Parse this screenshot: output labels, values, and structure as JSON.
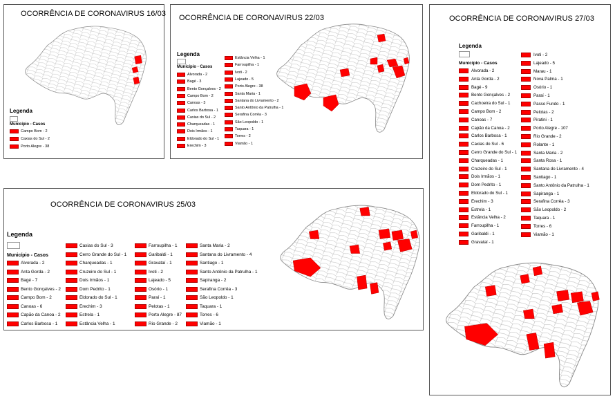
{
  "colors": {
    "affected": "#ff0000",
    "border": "#555555",
    "map_line": "#9a9a9a"
  },
  "panels": {
    "p1603": {
      "title": "OCORRÊNCIA DE CORONAVIRUS 16/03",
      "legend_title": "Legenda",
      "legend_header": "Município - Casos",
      "items": [
        "Campo Bom - 2",
        "Caxias do Sul - 2",
        "Porto Alegre - 38"
      ]
    },
    "p2203": {
      "title": "OCORRÊNCIA DE CORONAVIRUS 22/03",
      "legend_title": "Legenda",
      "legend_header": "Município - Casos",
      "col1": [
        "Alvorada - 2",
        "Bagé - 3",
        "Bento Gonçalves - 2",
        "Campo Bom - 2",
        "Canoas - 3",
        "Carlos Barbosa - 1",
        "Caxias do Sul - 2",
        "Charqueadas - 1",
        "Dois Irmãos - 1",
        "Eldorado do Sul - 1",
        "Erechim - 3"
      ],
      "col2": [
        "Estância Velha - 1",
        "Farroupilha - 1",
        "Ivoti - 2",
        "Lajeado - 5",
        "Porto Alegre - 38",
        "Santa Maria - 1",
        "Santana do Livramento - 2",
        "Santo Antônio da Patrulha - 1",
        "Serafina Corrêa - 3",
        "São Leopoldo - 1",
        "Taquara - 1",
        "Torres - 2",
        "Viamão - 1"
      ]
    },
    "p2503": {
      "title": "OCORRÊNCIA DE CORONAVIRUS 25/03",
      "legend_title": "Legenda",
      "legend_header": "Município - Casos",
      "col1": [
        "Alvorada - 2",
        "Anta Gorda - 2",
        "Bagé - 7",
        "Bento Gonçalves - 2",
        "Campo Bom - 2",
        "Canoas - 6",
        "Capão da Canoa - 2",
        "Carlos Barbosa - 1"
      ],
      "col2": [
        "Caxias do Sul - 3",
        "Cerro Grande do Sul - 1",
        "Charqueadas - 1",
        "Cruzeiro do Sul - 1",
        "Dois Irmãos - 1",
        "Dom Pedrito - 1",
        "Eldorado do Sul - 1",
        "Erechim - 3",
        "Estrela - 1",
        "Estância Velha - 1"
      ],
      "col3": [
        "Farroupilha - 1",
        "Garibaldi - 1",
        "Gravataí - 1",
        "Ivoti - 2",
        "Lajeado - 5",
        "Osório - 1",
        "Paraí - 1",
        "Pelotas - 1",
        "Porto Alegre - 87",
        "Rio Grande - 2"
      ],
      "col4": [
        "Santa Maria - 2",
        "Santana do Livramento - 4",
        "Santiago - 1",
        "Santo Antônio da Patrulha - 1",
        "Sapiranga - 2",
        "Serafina Corrêa - 3",
        "São Leopoldo - 1",
        "Taquara - 1",
        "Torres - 6",
        "Viamão - 1"
      ]
    },
    "p2703": {
      "title": "OCORRÊNCIA DE CORONAVIRUS 27/03",
      "legend_title": "Legenda",
      "legend_header": "Município - Casos",
      "col1": [
        "Alvorada - 2",
        "Anta Gorda - 2",
        "Bagé - 9",
        "Bento Gonçalves - 2",
        "Cachoeira do Sul - 1",
        "Campo Bom - 2",
        "Canoas - 7",
        "Capão da Canoa - 2",
        "Carlos Barbosa - 1",
        "Caxias do Sul - 6",
        "Cerro Grande do Sul - 1",
        "Charqueadas - 1",
        "Cruzeiro do Sul - 1",
        "Dois Irmãos - 1",
        "Dom Pedrito - 1",
        "Eldorado do Sul - 1",
        "Erechim - 3",
        "Estrela - 1",
        "Estância Velha - 2",
        "Farroupilha - 1",
        "Garibaldi - 1",
        "Gravataí - 1"
      ],
      "col2": [
        "Ivoti - 2",
        "Lajeado - 5",
        "Marau - 1",
        "Nova Palma - 1",
        "Osório - 1",
        "Paraí - 1",
        "Passo Fundo - 1",
        "Pelotas - 2",
        "Piratini - 1",
        "Porto Alegre - 107",
        "Rio Grande - 2",
        "Rolante - 1",
        "Santa Maria - 2",
        "Santa Rosa - 1",
        "Santana do Livramento - 4",
        "Santiago - 1",
        "Santo Antônio da Patrulha - 1",
        "Sapiranga - 1",
        "Serafina Corrêa - 3",
        "São Leopoldo - 2",
        "Taquara - 1",
        "Torres - 6",
        "Viamão - 1"
      ]
    }
  }
}
